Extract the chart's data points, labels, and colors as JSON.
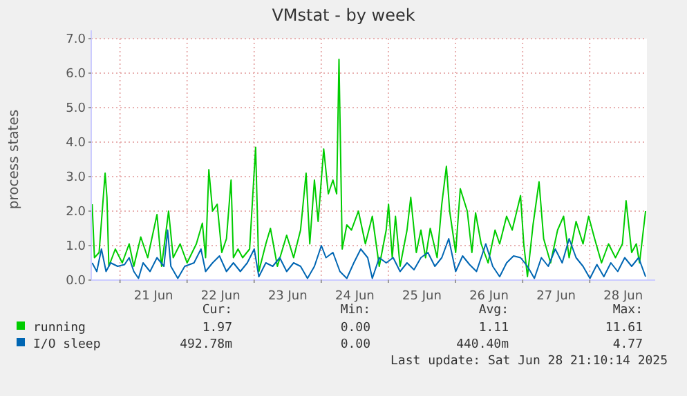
{
  "chart_data": {
    "type": "line",
    "title": "VMstat - by week",
    "ylabel": "process states",
    "xlim": [
      "2025-06-20T13:43",
      "2025-06-28T20:28"
    ],
    "xticks": [
      {
        "value": "2025-06-21",
        "label": null
      },
      {
        "value": "2025-06-21T12:00",
        "label": "21 Jun"
      },
      {
        "value": "2025-06-22",
        "label": null
      },
      {
        "value": "2025-06-22T12:00",
        "label": "22 Jun"
      },
      {
        "value": "2025-06-23",
        "label": null
      },
      {
        "value": "2025-06-23T12:00",
        "label": "23 Jun"
      },
      {
        "value": "2025-06-24",
        "label": null
      },
      {
        "value": "2025-06-24T12:00",
        "label": "24 Jun"
      },
      {
        "value": "2025-06-25",
        "label": null
      },
      {
        "value": "2025-06-25T12:00",
        "label": "25 Jun"
      },
      {
        "value": "2025-06-26",
        "label": null
      },
      {
        "value": "2025-06-26T12:00",
        "label": "26 Jun"
      },
      {
        "value": "2025-06-27",
        "label": null
      },
      {
        "value": "2025-06-27T12:00",
        "label": "27 Jun"
      },
      {
        "value": "2025-06-28",
        "label": null
      },
      {
        "value": "2025-06-28T12:00",
        "label": "28 Jun"
      }
    ],
    "ylim": [
      0,
      7
    ],
    "yticks": [
      {
        "value": 0,
        "label": "0.0"
      },
      {
        "value": 1,
        "label": "1.0"
      },
      {
        "value": 2,
        "label": "2.0"
      },
      {
        "value": 3,
        "label": "3.0"
      },
      {
        "value": 4,
        "label": "4.0"
      },
      {
        "value": 5,
        "label": "5.0"
      },
      {
        "value": 6,
        "label": "6.0"
      },
      {
        "value": 7,
        "label": "7.0"
      }
    ],
    "grid": true,
    "legend": "bottom left",
    "marker": "none",
    "line_style": "solid",
    "series": [
      {
        "name": "running",
        "color": "#00cc00",
        "x": [
          "2025-06-20T14:03",
          "2025-06-20T14:52",
          "2025-06-20T16:32",
          "2025-06-20T18:41",
          "2025-06-20T19:20",
          "2025-06-20T20:01",
          "2025-06-20T22:20",
          "2025-06-21T00:49",
          "2025-06-21T03:17",
          "2025-06-21T04:57",
          "2025-06-21T07:26",
          "2025-06-21T09:55",
          "2025-06-21T13:14",
          "2025-06-21T14:53",
          "2025-06-21T17:23",
          "2025-06-21T19:02",
          "2025-06-21T21:31",
          "2025-06-22T00:00",
          "2025-06-22T03:19",
          "2025-06-22T05:28",
          "2025-06-22T06:37",
          "2025-06-22T07:47",
          "2025-06-22T09:07",
          "2025-06-22T10:46",
          "2025-06-22T12:25",
          "2025-06-22T14:05",
          "2025-06-22T15:44",
          "2025-06-22T16:34",
          "2025-06-22T18:13",
          "2025-06-22T19:53",
          "2025-06-22T22:22",
          "2025-06-23T00:31",
          "2025-06-23T01:40",
          "2025-06-23T04:10",
          "2025-06-23T05:49",
          "2025-06-23T08:18",
          "2025-06-23T11:37",
          "2025-06-23T14:06",
          "2025-06-23T16:35",
          "2025-06-23T18:34",
          "2025-06-23T19:53",
          "2025-06-23T21:33",
          "2025-06-23T22:52",
          "2025-06-24T00:52",
          "2025-06-24T02:31",
          "2025-06-24T04:10",
          "2025-06-24T05:30",
          "2025-06-24T06:20",
          "2025-06-24T07:29",
          "2025-06-24T09:08",
          "2025-06-24T10:48",
          "2025-06-24T13:17",
          "2025-06-24T15:46",
          "2025-06-24T18:15",
          "2025-06-24T20:44",
          "2025-06-24T23:13",
          "2025-06-25T00:03",
          "2025-06-25T01:23",
          "2025-06-25T02:32",
          "2025-06-25T04:11",
          "2025-06-25T06:40",
          "2025-06-25T08:00",
          "2025-06-25T09:59",
          "2025-06-25T11:38",
          "2025-06-25T13:18",
          "2025-06-25T14:58",
          "2025-06-25T17:26",
          "2025-06-25T19:06",
          "2025-06-25T20:45",
          "2025-06-25T21:55",
          "2025-06-26T00:04",
          "2025-06-26T01:43",
          "2025-06-26T04:13",
          "2025-06-26T05:52",
          "2025-06-26T07:11",
          "2025-06-26T09:11",
          "2025-06-26T11:40",
          "2025-06-26T14:09",
          "2025-06-26T15:48",
          "2025-06-26T18:17",
          "2025-06-26T20:17",
          "2025-06-26T23:16",
          "2025-06-27T00:25",
          "2025-06-27T01:44",
          "2025-06-27T03:44",
          "2025-06-27T05:53",
          "2025-06-27T07:32",
          "2025-06-27T10:01",
          "2025-06-27T12:31",
          "2025-06-27T14:40",
          "2025-06-27T16:39",
          "2025-06-27T19:08",
          "2025-06-27T21:37",
          "2025-06-27T23:37",
          "2025-06-28T01:46",
          "2025-06-28T04:14",
          "2025-06-28T06:44",
          "2025-06-28T09:13",
          "2025-06-28T11:42",
          "2025-06-28T13:01",
          "2025-06-28T15:01",
          "2025-06-28T16:40",
          "2025-06-28T17:50",
          "2025-06-28T19:59"
        ],
        "values": [
          2.2,
          0.65,
          0.8,
          3.1,
          2.4,
          0.4,
          0.9,
          0.5,
          1.05,
          0.4,
          1.25,
          0.65,
          1.9,
          0.4,
          2.0,
          0.65,
          1.05,
          0.5,
          1.05,
          1.65,
          0.65,
          3.2,
          2.0,
          2.2,
          0.8,
          1.2,
          2.9,
          0.65,
          0.9,
          0.65,
          0.9,
          3.85,
          0.25,
          1.05,
          1.5,
          0.4,
          1.3,
          0.65,
          1.45,
          3.1,
          1.05,
          2.9,
          1.7,
          3.8,
          2.5,
          2.9,
          2.5,
          6.4,
          0.9,
          1.6,
          1.45,
          2.0,
          1.05,
          1.85,
          0.4,
          1.45,
          2.2,
          0.65,
          1.85,
          0.4,
          1.45,
          2.4,
          0.8,
          1.45,
          0.65,
          1.5,
          0.65,
          2.2,
          3.3,
          2.0,
          0.8,
          2.65,
          2.0,
          0.8,
          1.95,
          1.05,
          0.5,
          1.45,
          1.05,
          1.85,
          1.45,
          2.45,
          1.05,
          0.1,
          1.6,
          2.85,
          1.2,
          0.5,
          1.45,
          1.85,
          0.65,
          1.7,
          1.05,
          1.85,
          1.2,
          0.5,
          1.05,
          0.65,
          1.05,
          2.3,
          0.8,
          1.05,
          0.5,
          2.0
        ]
      },
      {
        "name": "I/O sleep",
        "color": "#0066b3",
        "x": [
          "2025-06-20T14:03",
          "2025-06-20T15:42",
          "2025-06-20T17:22",
          "2025-06-20T19:01",
          "2025-06-20T20:40",
          "2025-06-20T23:10",
          "2025-06-21T01:38",
          "2025-06-21T03:17",
          "2025-06-21T04:57",
          "2025-06-21T06:37",
          "2025-06-21T08:16",
          "2025-06-21T10:45",
          "2025-06-21T13:14",
          "2025-06-21T15:43",
          "2025-06-21T17:02",
          "2025-06-21T18:12",
          "2025-06-21T20:41",
          "2025-06-21T23:10",
          "2025-06-22T02:29",
          "2025-06-22T04:58",
          "2025-06-22T06:37",
          "2025-06-22T09:07",
          "2025-06-22T11:35",
          "2025-06-22T14:05",
          "2025-06-22T16:34",
          "2025-06-22T19:03",
          "2025-06-22T21:32",
          "2025-06-23T00:01",
          "2025-06-23T01:40",
          "2025-06-23T04:10",
          "2025-06-23T06:38",
          "2025-06-23T09:08",
          "2025-06-23T11:37",
          "2025-06-23T14:06",
          "2025-06-23T16:35",
          "2025-06-23T19:04",
          "2025-06-23T21:33",
          "2025-06-24T00:02",
          "2025-06-24T01:41",
          "2025-06-24T04:10",
          "2025-06-24T06:40",
          "2025-06-24T09:08",
          "2025-06-24T11:38",
          "2025-06-24T14:07",
          "2025-06-24T16:36",
          "2025-06-24T18:15",
          "2025-06-24T20:44",
          "2025-06-24T23:13",
          "2025-06-25T01:43",
          "2025-06-25T04:11",
          "2025-06-25T06:40",
          "2025-06-25T09:10",
          "2025-06-25T11:38",
          "2025-06-25T14:08",
          "2025-06-25T16:37",
          "2025-06-25T19:06",
          "2025-06-25T21:35",
          "2025-06-26T00:04",
          "2025-06-26T02:33",
          "2025-06-26T05:02",
          "2025-06-26T07:31",
          "2025-06-26T10:50",
          "2025-06-26T13:19",
          "2025-06-26T15:48",
          "2025-06-26T18:17",
          "2025-06-26T20:46",
          "2025-06-26T23:16",
          "2025-06-27T01:44",
          "2025-06-27T04:13",
          "2025-06-27T06:43",
          "2025-06-27T09:11",
          "2025-06-27T11:41",
          "2025-06-27T14:10",
          "2025-06-27T16:39",
          "2025-06-27T19:08",
          "2025-06-27T21:37",
          "2025-06-28T00:06",
          "2025-06-28T02:35",
          "2025-06-28T05:04",
          "2025-06-28T07:34",
          "2025-06-28T10:02",
          "2025-06-28T12:32",
          "2025-06-28T15:01",
          "2025-06-28T17:30",
          "2025-06-28T19:59"
        ],
        "values": [
          0.5,
          0.25,
          0.9,
          0.25,
          0.5,
          0.4,
          0.45,
          0.65,
          0.25,
          0.05,
          0.5,
          0.25,
          0.65,
          0.4,
          1.45,
          0.4,
          0.05,
          0.4,
          0.5,
          0.9,
          0.25,
          0.5,
          0.7,
          0.25,
          0.5,
          0.25,
          0.5,
          0.9,
          0.1,
          0.5,
          0.4,
          0.65,
          0.25,
          0.5,
          0.4,
          0.05,
          0.4,
          1.0,
          0.65,
          0.8,
          0.25,
          0.05,
          0.5,
          0.9,
          0.65,
          0.05,
          0.65,
          0.5,
          0.65,
          0.25,
          0.5,
          0.3,
          0.65,
          0.8,
          0.4,
          0.65,
          1.2,
          0.25,
          0.7,
          0.45,
          0.25,
          1.05,
          0.4,
          0.1,
          0.5,
          0.7,
          0.65,
          0.4,
          0.05,
          0.65,
          0.4,
          0.9,
          0.5,
          1.2,
          0.65,
          0.4,
          0.05,
          0.45,
          0.1,
          0.5,
          0.25,
          0.65,
          0.4,
          0.65,
          0.1
        ]
      }
    ],
    "annotations": [
      "Cur:",
      "Min:",
      "Avg:",
      "Max:",
      "1.97",
      "0.00",
      "1.11",
      "11.61",
      "492.78m",
      "0.00",
      "440.40m",
      "4.77",
      "Last update: Sat Jun 28 21:10:14 2025"
    ]
  }
}
